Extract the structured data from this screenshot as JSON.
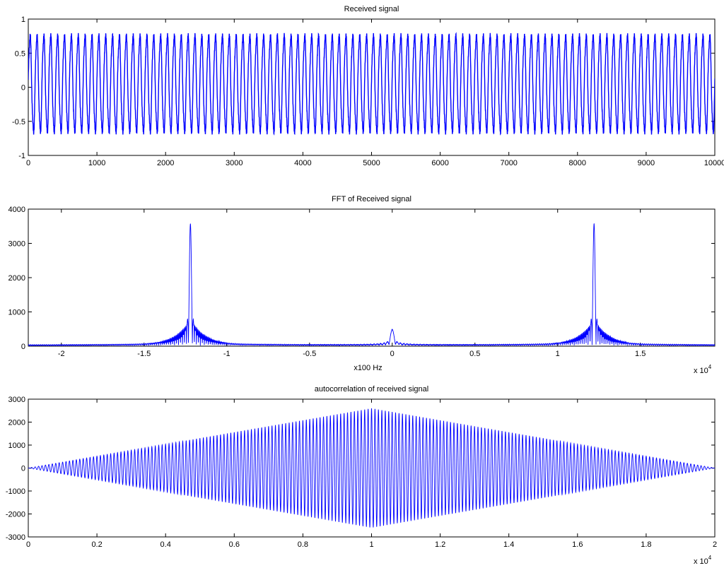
{
  "chart_data": [
    {
      "type": "line",
      "title": "Received signal",
      "xlabel": "",
      "ylabel": "",
      "xlim": [
        0,
        10000
      ],
      "ylim": [
        -1,
        1
      ],
      "x_ticks": [
        "0",
        "1000",
        "2000",
        "3000",
        "4000",
        "5000",
        "6000",
        "7000",
        "8000",
        "9000",
        "10000"
      ],
      "y_ticks": [
        "1",
        "0.5",
        "0",
        "-0.5",
        "-1"
      ],
      "x_exponent": "",
      "grid": false,
      "color": "#0000ff",
      "series": [
        {
          "cycles": 100,
          "amplitude_max": 0.82,
          "amplitude_min": -0.72,
          "x_range": [
            0,
            10000
          ]
        }
      ]
    },
    {
      "type": "line",
      "title": "FFT of Received signal",
      "xlabel": "x100 Hz",
      "ylabel": "",
      "xlim": [
        -2.2,
        1.95
      ],
      "ylim": [
        0,
        4000
      ],
      "x_ticks": [
        "-2",
        "-1.5",
        "-1",
        "-0.5",
        "0",
        "0.5",
        "1",
        "1.5"
      ],
      "y_ticks": [
        "4000",
        "3000",
        "2000",
        "1000",
        "0"
      ],
      "x_exponent": "x 10^4",
      "grid": false,
      "color": "#0000ff",
      "series": [
        {
          "peaks": [
            {
              "x": -1.22,
              "y": 3550
            },
            {
              "x": 1.22,
              "y": 3550
            },
            {
              "x": 0.0,
              "y": 450
            }
          ],
          "side_lobes_near_peaks": [
            780,
            760
          ],
          "baseline": 10
        }
      ]
    },
    {
      "type": "line",
      "title": "autocorrelation of received signal",
      "xlabel": "",
      "ylabel": "",
      "xlim": [
        0,
        2
      ],
      "ylim": [
        -3000,
        3000
      ],
      "x_ticks": [
        "0",
        "0.2",
        "0.4",
        "0.6",
        "0.8",
        "1",
        "1.2",
        "1.4",
        "1.6",
        "1.8",
        "2"
      ],
      "y_ticks": [
        "3000",
        "2000",
        "1000",
        "0",
        "-1000",
        "-2000",
        "-3000"
      ],
      "x_exponent": "x 10^4",
      "grid": false,
      "color": "#0000ff",
      "series": [
        {
          "cycles": 200,
          "peak_envelope": 2600,
          "peak_x": 1.0,
          "x_range": [
            0,
            2
          ]
        }
      ]
    }
  ]
}
